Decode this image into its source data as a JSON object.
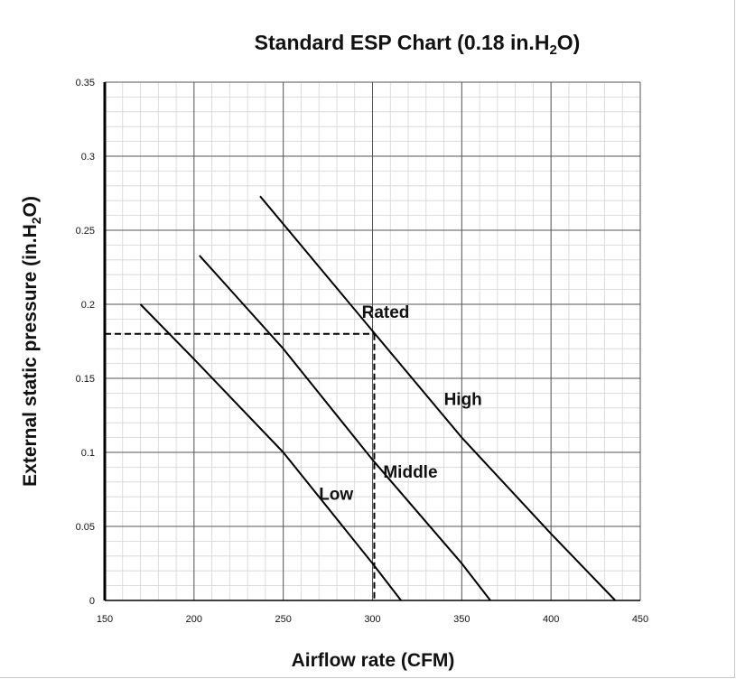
{
  "chart_data": {
    "type": "line",
    "title": "Standard ESP Chart (0.18 in.H2O)",
    "title_parts": {
      "main": "Standard ESP Chart (0.18 in.H",
      "sub": "2",
      "end": "O)"
    },
    "xlabel": "Airflow rate (CFM)",
    "ylabel": "External static pressure (in.H2O)",
    "ylabel_parts": {
      "main": "External static pressure (in.H",
      "sub": "2",
      "end": "O)"
    },
    "xlim": [
      150,
      450
    ],
    "ylim": [
      0,
      0.35
    ],
    "x_ticks": [
      150,
      200,
      250,
      300,
      350,
      400,
      450
    ],
    "y_ticks": [
      0,
      0.05,
      0.1,
      0.15,
      0.2,
      0.25,
      0.3,
      0.35
    ],
    "x_tick_labels": [
      "150",
      "200",
      "250",
      "300",
      "350",
      "400",
      "450"
    ],
    "y_tick_labels": [
      "0",
      "0.05",
      "0.1",
      "0.15",
      "0.2",
      "0.25",
      "0.3",
      "0.35"
    ],
    "grid": true,
    "series": [
      {
        "name": "Low",
        "points": [
          [
            170,
            0.2
          ],
          [
            200,
            0.163
          ],
          [
            250,
            0.1
          ],
          [
            300,
            0.025
          ],
          [
            316,
            0
          ]
        ]
      },
      {
        "name": "Middle",
        "points": [
          [
            203,
            0.233
          ],
          [
            250,
            0.17
          ],
          [
            300,
            0.095
          ],
          [
            350,
            0.025
          ],
          [
            366,
            0
          ]
        ]
      },
      {
        "name": "High",
        "points": [
          [
            237,
            0.273
          ],
          [
            300,
            0.182
          ],
          [
            350,
            0.11
          ],
          [
            400,
            0.045
          ],
          [
            436,
            0
          ]
        ]
      }
    ],
    "rated_point": {
      "label": "Rated",
      "x": 301,
      "y": 0.18
    }
  }
}
